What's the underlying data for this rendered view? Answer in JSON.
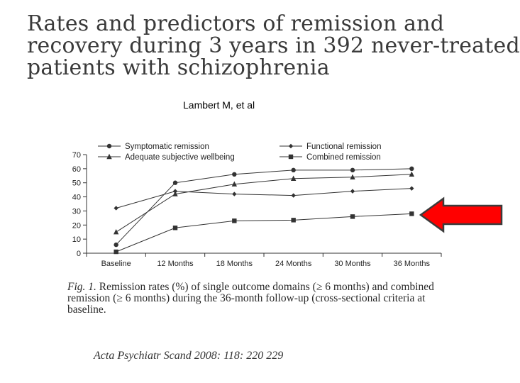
{
  "title": {
    "line1": "Rates and predictors of remission and",
    "line2": "recovery during 3 years in 392 never-treated",
    "line3": "patients with schizophrenia"
  },
  "author": "Lambert M, et al",
  "caption": {
    "label": "Fig. 1.",
    "text": "Remission rates (%) of single outcome domains (≥ 6 months) and combined remission (≥ 6 months) during the 36-month follow-up (cross-sectional criteria at baseline."
  },
  "citation": "Acta Psychiatr Scand 2008: 118: 220 229",
  "colors": {
    "arrow": "#ff0000",
    "arrow_outline": "#3b3b3b",
    "line": "#333333"
  },
  "chart_data": {
    "type": "line",
    "title": "",
    "xlabel": "",
    "ylabel": "",
    "categories": [
      "Baseline",
      "12 Months",
      "18 Months",
      "24 Months",
      "30 Months",
      "36 Months"
    ],
    "ylim": [
      0,
      70
    ],
    "yticks": [
      0,
      10,
      20,
      30,
      40,
      50,
      60,
      70
    ],
    "series": [
      {
        "name": "Symptomatic remission",
        "marker": "circle",
        "values": [
          6,
          50,
          56,
          59,
          59,
          60
        ]
      },
      {
        "name": "Adequate subjective wellbeing",
        "marker": "triangle",
        "values": [
          15,
          42,
          49,
          53,
          54,
          56
        ]
      },
      {
        "name": "Functional remission",
        "marker": "diamond",
        "values": [
          32,
          44,
          42,
          41,
          44,
          46
        ]
      },
      {
        "name": "Combined remission",
        "marker": "square",
        "values": [
          1,
          18,
          23,
          23.5,
          26,
          28
        ]
      }
    ]
  }
}
